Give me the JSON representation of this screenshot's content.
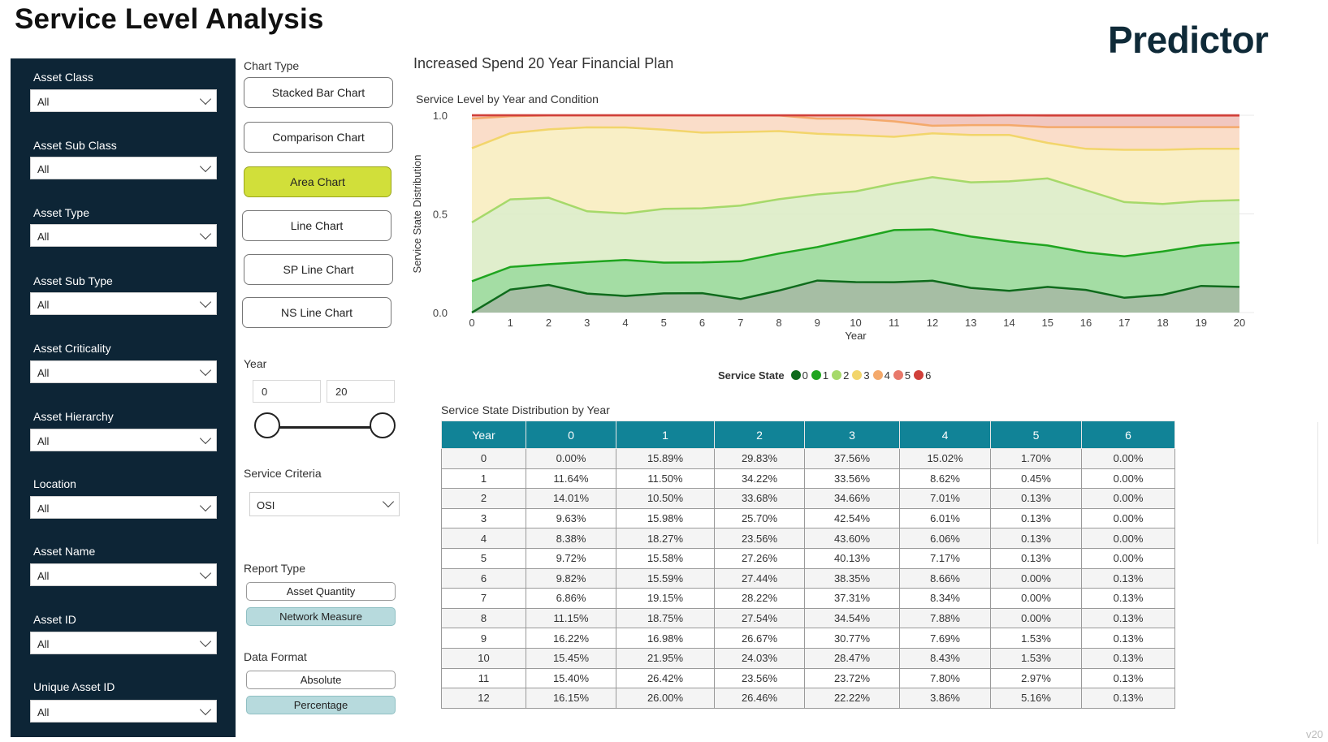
{
  "header": {
    "title": "Service Level Analysis",
    "brand": "Predictor",
    "version": "v20"
  },
  "filters": [
    {
      "label": "Asset Class",
      "value": "All"
    },
    {
      "label": "Asset Sub Class",
      "value": "All"
    },
    {
      "label": "Asset Type",
      "value": "All"
    },
    {
      "label": "Asset Sub Type",
      "value": "All"
    },
    {
      "label": "Asset Criticality",
      "value": "All"
    },
    {
      "label": "Asset Hierarchy",
      "value": "All"
    },
    {
      "label": "Location",
      "value": "All"
    },
    {
      "label": "Asset Name",
      "value": "All"
    },
    {
      "label": "Asset ID",
      "value": "All"
    },
    {
      "label": "Unique Asset ID",
      "value": "All"
    }
  ],
  "controls": {
    "chart_type_label": "Chart Type",
    "chart_types": [
      "Stacked Bar Chart",
      "Comparison Chart",
      "Area Chart",
      "Line Chart",
      "SP Line Chart",
      "NS Line Chart"
    ],
    "chart_type_selected": "Area Chart",
    "year_label": "Year",
    "year_min": "0",
    "year_max": "20",
    "service_criteria_label": "Service Criteria",
    "service_criteria_value": "OSI",
    "report_type_label": "Report Type",
    "report_types": [
      "Asset Quantity",
      "Network Measure"
    ],
    "report_type_selected": "Network Measure",
    "data_format_label": "Data Format",
    "data_formats": [
      "Absolute",
      "Percentage"
    ],
    "data_format_selected": "Percentage"
  },
  "report": {
    "title": "Increased Spend 20 Year Financial Plan"
  },
  "chart_data": {
    "type": "area",
    "title": "Service Level by Year and Condition",
    "xlabel": "Year",
    "ylabel": "Service State Distribution",
    "x": [
      0,
      1,
      2,
      3,
      4,
      5,
      6,
      7,
      8,
      9,
      10,
      11,
      12,
      13,
      14,
      15,
      16,
      17,
      18,
      19,
      20
    ],
    "xlim": [
      0,
      20
    ],
    "ylim": [
      0,
      1
    ],
    "y_ticks": [
      "0.0",
      "0.5",
      "1.0"
    ],
    "grid": "horizontal",
    "stacked": true,
    "legend": {
      "title": "Service State",
      "placement": "bottom"
    },
    "series": [
      {
        "name": "0",
        "color": "#0f6b1c",
        "fill": "#9cb79a",
        "values": [
          0.0,
          0.1164,
          0.1401,
          0.0963,
          0.0838,
          0.0972,
          0.0982,
          0.0686,
          0.1115,
          0.1622,
          0.1545,
          0.154,
          0.1615,
          0.125,
          0.11,
          0.13,
          0.115,
          0.075,
          0.09,
          0.135,
          0.13
        ]
      },
      {
        "name": "1",
        "color": "#1fa51f",
        "fill": "#9ad99a",
        "values": [
          0.1589,
          0.115,
          0.105,
          0.1598,
          0.1827,
          0.1558,
          0.1559,
          0.1915,
          0.1875,
          0.1698,
          0.2195,
          0.2642,
          0.26,
          0.26,
          0.25,
          0.21,
          0.19,
          0.21,
          0.22,
          0.205,
          0.225
        ]
      },
      {
        "name": "2",
        "color": "#a6d96a",
        "fill": "#ddecc6",
        "values": [
          0.2983,
          0.3422,
          0.3368,
          0.257,
          0.2356,
          0.2726,
          0.2744,
          0.2822,
          0.2754,
          0.2667,
          0.2403,
          0.2356,
          0.2646,
          0.275,
          0.305,
          0.34,
          0.315,
          0.275,
          0.24,
          0.225,
          0.215
        ]
      },
      {
        "name": "3",
        "color": "#f2d56b",
        "fill": "#f8edc0",
        "values": [
          0.3756,
          0.3356,
          0.3466,
          0.4254,
          0.436,
          0.4013,
          0.3835,
          0.3731,
          0.3454,
          0.3077,
          0.2847,
          0.2372,
          0.2222,
          0.24,
          0.235,
          0.18,
          0.21,
          0.265,
          0.275,
          0.265,
          0.26
        ]
      },
      {
        "name": "4",
        "color": "#f4a96b",
        "fill": "#f9d9c3",
        "values": [
          0.1502,
          0.0862,
          0.0701,
          0.0601,
          0.0606,
          0.0717,
          0.0866,
          0.0834,
          0.0788,
          0.0769,
          0.0843,
          0.078,
          0.0386,
          0.05,
          0.05,
          0.08,
          0.11,
          0.115,
          0.115,
          0.11,
          0.11
        ]
      },
      {
        "name": "5",
        "color": "#e8796b",
        "fill": "#f0c1b9",
        "values": [
          0.017,
          0.0045,
          0.0013,
          0.0013,
          0.0013,
          0.0013,
          0.0,
          0.0,
          0.0,
          0.0153,
          0.0153,
          0.0297,
          0.0516,
          0.048,
          0.053,
          0.058,
          0.058,
          0.058,
          0.058,
          0.058,
          0.058
        ]
      },
      {
        "name": "6",
        "color": "#d0403a",
        "fill": "#e89a94",
        "values": [
          0.0,
          0.0,
          0.0,
          0.0,
          0.0,
          0.0,
          0.0013,
          0.0013,
          0.0013,
          0.0013,
          0.0013,
          0.0013,
          0.0013,
          0.002,
          0.002,
          0.002,
          0.002,
          0.002,
          0.002,
          0.002,
          0.002
        ]
      }
    ]
  },
  "table": {
    "title": "Service State Distribution by Year",
    "columns": [
      "Year",
      "0",
      "1",
      "2",
      "3",
      "4",
      "5",
      "6"
    ],
    "rows": [
      [
        "0",
        "0.00%",
        "15.89%",
        "29.83%",
        "37.56%",
        "15.02%",
        "1.70%",
        "0.00%"
      ],
      [
        "1",
        "11.64%",
        "11.50%",
        "34.22%",
        "33.56%",
        "8.62%",
        "0.45%",
        "0.00%"
      ],
      [
        "2",
        "14.01%",
        "10.50%",
        "33.68%",
        "34.66%",
        "7.01%",
        "0.13%",
        "0.00%"
      ],
      [
        "3",
        "9.63%",
        "15.98%",
        "25.70%",
        "42.54%",
        "6.01%",
        "0.13%",
        "0.00%"
      ],
      [
        "4",
        "8.38%",
        "18.27%",
        "23.56%",
        "43.60%",
        "6.06%",
        "0.13%",
        "0.00%"
      ],
      [
        "5",
        "9.72%",
        "15.58%",
        "27.26%",
        "40.13%",
        "7.17%",
        "0.13%",
        "0.00%"
      ],
      [
        "6",
        "9.82%",
        "15.59%",
        "27.44%",
        "38.35%",
        "8.66%",
        "0.00%",
        "0.13%"
      ],
      [
        "7",
        "6.86%",
        "19.15%",
        "28.22%",
        "37.31%",
        "8.34%",
        "0.00%",
        "0.13%"
      ],
      [
        "8",
        "11.15%",
        "18.75%",
        "27.54%",
        "34.54%",
        "7.88%",
        "0.00%",
        "0.13%"
      ],
      [
        "9",
        "16.22%",
        "16.98%",
        "26.67%",
        "30.77%",
        "7.69%",
        "1.53%",
        "0.13%"
      ],
      [
        "10",
        "15.45%",
        "21.95%",
        "24.03%",
        "28.47%",
        "8.43%",
        "1.53%",
        "0.13%"
      ],
      [
        "11",
        "15.40%",
        "26.42%",
        "23.56%",
        "23.72%",
        "7.80%",
        "2.97%",
        "0.13%"
      ],
      [
        "12",
        "16.15%",
        "26.00%",
        "26.46%",
        "22.22%",
        "3.86%",
        "5.16%",
        "0.13%"
      ]
    ]
  }
}
